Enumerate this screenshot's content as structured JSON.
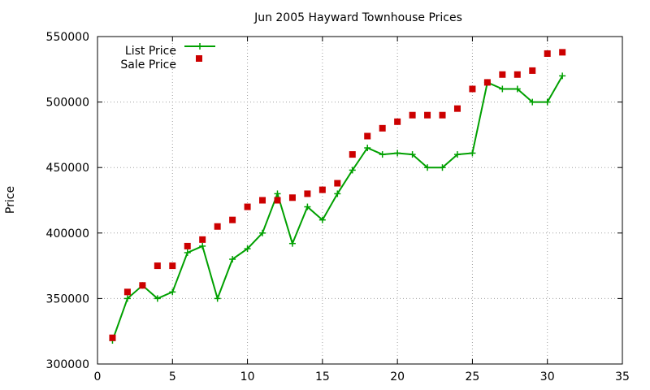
{
  "chart_data": {
    "type": "line",
    "title": "Jun 2005 Hayward Townhouse Prices",
    "xlabel": "",
    "ylabel": "Price",
    "xlim": [
      0,
      35
    ],
    "ylim": [
      300000,
      550000
    ],
    "xticks": [
      0,
      5,
      10,
      15,
      20,
      25,
      30,
      35
    ],
    "yticks": [
      300000,
      350000,
      400000,
      450000,
      500000,
      550000
    ],
    "grid": true,
    "legend_position": "top-left",
    "series": [
      {
        "name": "List Price",
        "style": "line-with-plus-markers",
        "color": "#00a000",
        "x": [
          1,
          2,
          3,
          4,
          5,
          6,
          7,
          8,
          9,
          10,
          11,
          12,
          13,
          14,
          15,
          16,
          17,
          18,
          19,
          20,
          21,
          22,
          23,
          24,
          25,
          26,
          27,
          28,
          29,
          30,
          31
        ],
        "y": [
          318000,
          350000,
          360000,
          350000,
          355000,
          385000,
          390000,
          350000,
          380000,
          388000,
          400000,
          430000,
          392000,
          420000,
          410000,
          430000,
          448000,
          465000,
          460000,
          461000,
          460000,
          450000,
          450000,
          460000,
          461000,
          515000,
          510000,
          510000,
          500000,
          500000,
          520000
        ]
      },
      {
        "name": "Sale Price",
        "style": "square-markers",
        "color": "#cc0000",
        "x": [
          1,
          2,
          3,
          4,
          5,
          6,
          7,
          8,
          9,
          10,
          11,
          12,
          13,
          14,
          15,
          16,
          17,
          18,
          19,
          20,
          21,
          22,
          23,
          24,
          25,
          26,
          27,
          28,
          29,
          30,
          31
        ],
        "y": [
          320000,
          355000,
          360000,
          375000,
          375000,
          390000,
          395000,
          405000,
          410000,
          420000,
          425000,
          425000,
          427000,
          430000,
          433000,
          438000,
          460000,
          474000,
          480000,
          485000,
          490000,
          490000,
          490000,
          495000,
          510000,
          515000,
          521000,
          521000,
          524000,
          537000,
          538000
        ]
      }
    ]
  }
}
